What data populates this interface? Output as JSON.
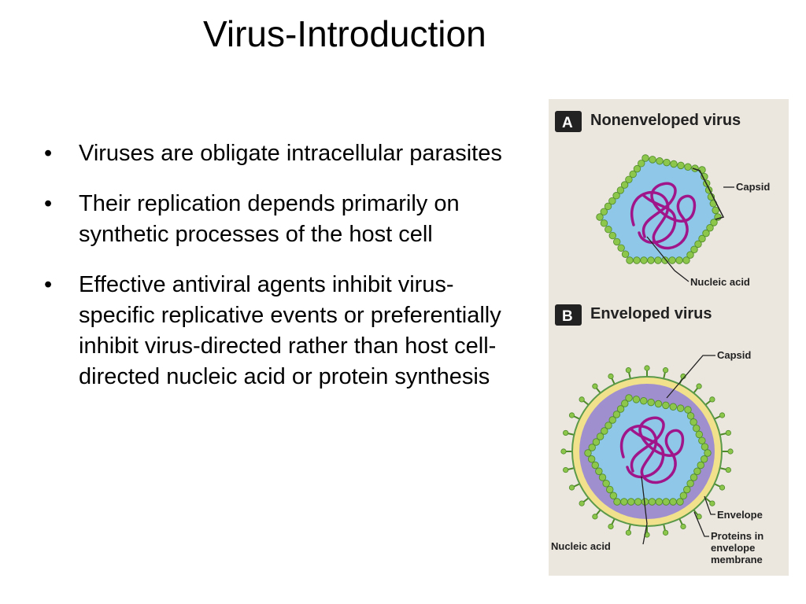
{
  "slide": {
    "title": "Virus-Introduction",
    "bullets": [
      "Viruses are obligate intracellular parasites",
      "Their replication depends primarily on synthetic processes of the host cell",
      "Effective antiviral agents inhibit virus-specific replicative events or preferentially inhibit virus-directed rather than host cell-directed nucleic acid or protein synthesis"
    ]
  },
  "figure": {
    "panel_a": {
      "badge": "A",
      "heading": "Nonenveloped virus",
      "capsid_label": "Capsid",
      "nucleic_label": "Nucleic acid"
    },
    "panel_b": {
      "badge": "B",
      "heading": "Enveloped virus",
      "capsid_label": "Capsid",
      "envelope_label": "Envelope",
      "proteins_label": [
        "Proteins in",
        "envelope",
        "membrane"
      ],
      "nucleic_label": "Nucleic acid"
    }
  },
  "colors": {
    "figure_bg": "#ebe6de",
    "capsomere": "#8cc64a",
    "capsid_fill": "#8fc7e8",
    "nucleic_acid": "#a0168a",
    "envelope": "#f1e08c",
    "membrane": "#a08fcf"
  }
}
